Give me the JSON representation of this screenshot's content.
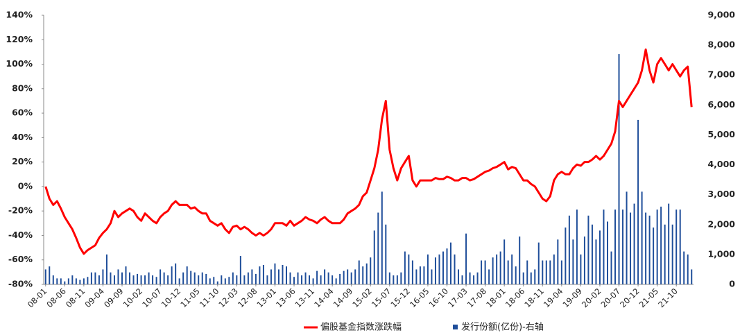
{
  "chart_data": {
    "type": "bar-line",
    "categories": [
      "08-01",
      null,
      null,
      null,
      null,
      "08-06",
      null,
      null,
      null,
      null,
      "08-11",
      null,
      null,
      null,
      null,
      "09-04",
      null,
      null,
      null,
      null,
      "09-09",
      null,
      null,
      null,
      null,
      "10-02",
      null,
      null,
      null,
      null,
      "10-07",
      null,
      null,
      null,
      null,
      "10-12",
      null,
      null,
      null,
      null,
      "11-05",
      null,
      null,
      null,
      null,
      "11-10",
      null,
      null,
      null,
      null,
      "12-03",
      null,
      null,
      null,
      null,
      "12-08",
      null,
      null,
      null,
      null,
      "13-01",
      null,
      null,
      null,
      null,
      "13-06",
      null,
      null,
      null,
      null,
      "13-11",
      null,
      null,
      null,
      null,
      "14-04",
      null,
      null,
      null,
      null,
      "14-09",
      null,
      null,
      null,
      null,
      "15-02",
      null,
      null,
      null,
      null,
      "15-07",
      null,
      null,
      null,
      null,
      "15-12",
      null,
      null,
      null,
      null,
      "16-05",
      null,
      null,
      null,
      null,
      "16-10",
      null,
      null,
      null,
      null,
      "17-03",
      null,
      null,
      null,
      null,
      "17-08",
      null,
      null,
      null,
      null,
      "18-01",
      null,
      null,
      null,
      null,
      "18-06",
      null,
      null,
      null,
      null,
      "18-11",
      null,
      null,
      null,
      null,
      "19-04",
      null,
      null,
      null,
      null,
      "19-09",
      null,
      null,
      null,
      null,
      "20-02",
      null,
      null,
      null,
      null,
      "20-07",
      null,
      null,
      null,
      null,
      "20-12",
      null,
      null,
      null,
      null,
      "21-05",
      null,
      null,
      null,
      null,
      "21-10",
      null,
      null,
      null,
      null
    ],
    "series": [
      {
        "name": "偏股基金指数涨跌幅",
        "type": "line",
        "color": "#ff0000",
        "values": [
          0,
          -10,
          -15,
          -12,
          -18,
          -25,
          -30,
          -35,
          -42,
          -50,
          -55,
          -52,
          -50,
          -48,
          -42,
          -38,
          -35,
          -30,
          -20,
          -25,
          -22,
          -20,
          -18,
          -20,
          -25,
          -28,
          -22,
          -25,
          -28,
          -30,
          -25,
          -22,
          -20,
          -15,
          -12,
          -15,
          -15,
          -15,
          -18,
          -17,
          -20,
          -22,
          -22,
          -28,
          -30,
          -32,
          -30,
          -35,
          -38,
          -33,
          -32,
          -35,
          -33,
          -35,
          -38,
          -40,
          -38,
          -40,
          -38,
          -35,
          -30,
          -30,
          -30,
          -32,
          -28,
          -32,
          -30,
          -28,
          -25,
          -27,
          -28,
          -30,
          -27,
          -25,
          -28,
          -30,
          -30,
          -30,
          -27,
          -22,
          -20,
          -18,
          -15,
          -8,
          -5,
          5,
          15,
          30,
          55,
          70,
          30,
          15,
          5,
          15,
          20,
          25,
          5,
          0,
          5,
          5,
          5,
          5,
          7,
          6,
          6,
          8,
          7,
          5,
          5,
          7,
          7,
          5,
          6,
          8,
          10,
          12,
          13,
          15,
          16,
          18,
          20,
          14,
          16,
          15,
          10,
          5,
          5,
          2,
          0,
          -5,
          -10,
          -12,
          -8,
          5,
          10,
          12,
          10,
          10,
          15,
          18,
          17,
          20,
          20,
          22,
          25,
          22,
          25,
          30,
          35,
          45,
          70,
          65,
          70,
          75,
          80,
          85,
          95,
          112,
          95,
          85,
          100,
          105,
          100,
          95,
          100,
          95,
          90,
          95,
          98,
          65
        ]
      },
      {
        "name": "发行份额(亿份)-右轴",
        "type": "bar",
        "axis": "y2",
        "color": "#1f4e9a",
        "values": [
          500,
          600,
          300,
          200,
          200,
          100,
          200,
          300,
          200,
          150,
          200,
          250,
          400,
          400,
          300,
          500,
          1000,
          400,
          300,
          500,
          400,
          600,
          400,
          300,
          350,
          300,
          300,
          400,
          300,
          250,
          500,
          400,
          300,
          600,
          700,
          200,
          400,
          600,
          450,
          400,
          300,
          400,
          350,
          200,
          250,
          100,
          300,
          200,
          250,
          400,
          300,
          950,
          300,
          400,
          500,
          350,
          600,
          650,
          300,
          500,
          700,
          500,
          650,
          600,
          400,
          250,
          400,
          300,
          400,
          300,
          200,
          450,
          300,
          500,
          400,
          300,
          200,
          350,
          450,
          500,
          400,
          500,
          800,
          600,
          700,
          900,
          1800,
          2400,
          3100,
          2000,
          400,
          300,
          300,
          400,
          1100,
          1000,
          800,
          500,
          600,
          600,
          1000,
          500,
          900,
          1000,
          1100,
          1200,
          1400,
          1000,
          500,
          300,
          1700,
          400,
          300,
          400,
          800,
          800,
          500,
          900,
          1000,
          1100,
          1500,
          800,
          1000,
          600,
          1600,
          400,
          800,
          400,
          500,
          1400,
          800,
          800,
          800,
          1000,
          1500,
          800,
          1900,
          2300,
          1500,
          2500,
          1000,
          1600,
          2300,
          2000,
          1500,
          1800,
          2500,
          2100,
          1100,
          2500,
          7700,
          2500,
          3100,
          2400,
          2700,
          5500,
          3100,
          2400,
          2300,
          1900,
          2500,
          2600,
          2000,
          2700,
          2000,
          2500,
          2500,
          1100,
          1000,
          500
        ]
      }
    ],
    "ylim": [
      -80,
      140
    ],
    "yticks": [
      {
        "value": -80,
        "label": "-80%"
      },
      {
        "value": -60,
        "label": "-60%"
      },
      {
        "value": -40,
        "label": "-40%"
      },
      {
        "value": -20,
        "label": "-20%"
      },
      {
        "value": 0,
        "label": "0%"
      },
      {
        "value": 20,
        "label": "20%"
      },
      {
        "value": 40,
        "label": "40%"
      },
      {
        "value": 60,
        "label": "60%"
      },
      {
        "value": 80,
        "label": "80%"
      },
      {
        "value": 100,
        "label": "100%"
      },
      {
        "value": 120,
        "label": "120%"
      },
      {
        "value": 140,
        "label": "140%"
      }
    ],
    "y2lim": [
      0,
      9000
    ],
    "y2ticks": [
      0,
      {
        "value": 1000,
        "label": "1,000"
      },
      {
        "value": 2000,
        "label": "2,000"
      },
      {
        "value": 3000,
        "label": "3,000"
      },
      {
        "value": 4000,
        "label": "4,000"
      },
      {
        "value": 5000,
        "label": "5,000"
      },
      {
        "value": 6000,
        "label": "6,000"
      },
      {
        "value": 7000,
        "label": "7,000"
      },
      {
        "value": 8000,
        "label": "8,000"
      },
      {
        "value": 9000,
        "label": "9,000"
      }
    ],
    "grid": false,
    "legend": "bottom"
  }
}
